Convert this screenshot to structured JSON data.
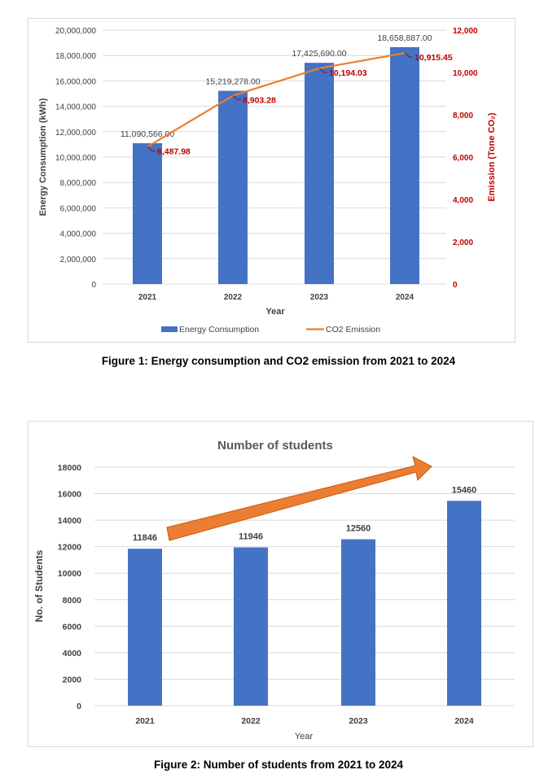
{
  "chart_data": [
    {
      "type": "bar+line",
      "title": "",
      "categories": [
        "2021",
        "2022",
        "2023",
        "2024"
      ],
      "xlabel": "Year",
      "ylabel": "Energy Consumption (kWh)",
      "y2label": "Emission (Tone CO₂)",
      "ylim": [
        0,
        20000000
      ],
      "y2lim": [
        0,
        12000
      ],
      "yticks": [
        "0",
        "2,000,000",
        "4,000,000",
        "6,000,000",
        "8,000,000",
        "10,000,000",
        "12,000,000",
        "14,000,000",
        "16,000,000",
        "18,000,000",
        "20,000,000"
      ],
      "y2ticks": [
        "0",
        "2,000",
        "4,000",
        "6,000",
        "8,000",
        "10,000",
        "12,000"
      ],
      "grid": true,
      "legend_position": "bottom",
      "series": [
        {
          "name": "Energy Consumption",
          "kind": "bar",
          "axis": "left",
          "color": "#4472C4",
          "values": [
            11090566,
            15219278,
            17425690,
            18658887
          ],
          "labels": [
            "11,090,566.00",
            "15,219,278.00",
            "17,425,690.00",
            "18,658,887.00"
          ]
        },
        {
          "name": "CO2 Emission",
          "kind": "line",
          "axis": "right",
          "color": "#ED7D31",
          "values": [
            6487.98,
            8903.28,
            10194.03,
            10915.45
          ],
          "labels": [
            "6,487.98",
            "8,903.28",
            "10,194.03",
            "10,915.45"
          ]
        }
      ],
      "label_color_right": "#C00000"
    },
    {
      "type": "bar",
      "title": "Number of students",
      "categories": [
        "2021",
        "2022",
        "2023",
        "2024"
      ],
      "values": [
        11846,
        11946,
        12560,
        15460
      ],
      "labels": [
        "11846",
        "11946",
        "12560",
        "15460"
      ],
      "xlabel": "Year",
      "ylabel": "No. of Students",
      "ylim": [
        0,
        18000
      ],
      "yticks": [
        "0",
        "2000",
        "4000",
        "6000",
        "8000",
        "10000",
        "12000",
        "14000",
        "16000",
        "18000"
      ],
      "grid": true,
      "color": "#4472C4",
      "annotation": "upward trend arrow",
      "annotation_color": "#ED7D31"
    }
  ],
  "captions": {
    "figure1": "Figure 1: Energy consumption and CO2 emission from 2021 to 2024",
    "figure2": "Figure 2: Number of students from 2021 to 2024"
  }
}
